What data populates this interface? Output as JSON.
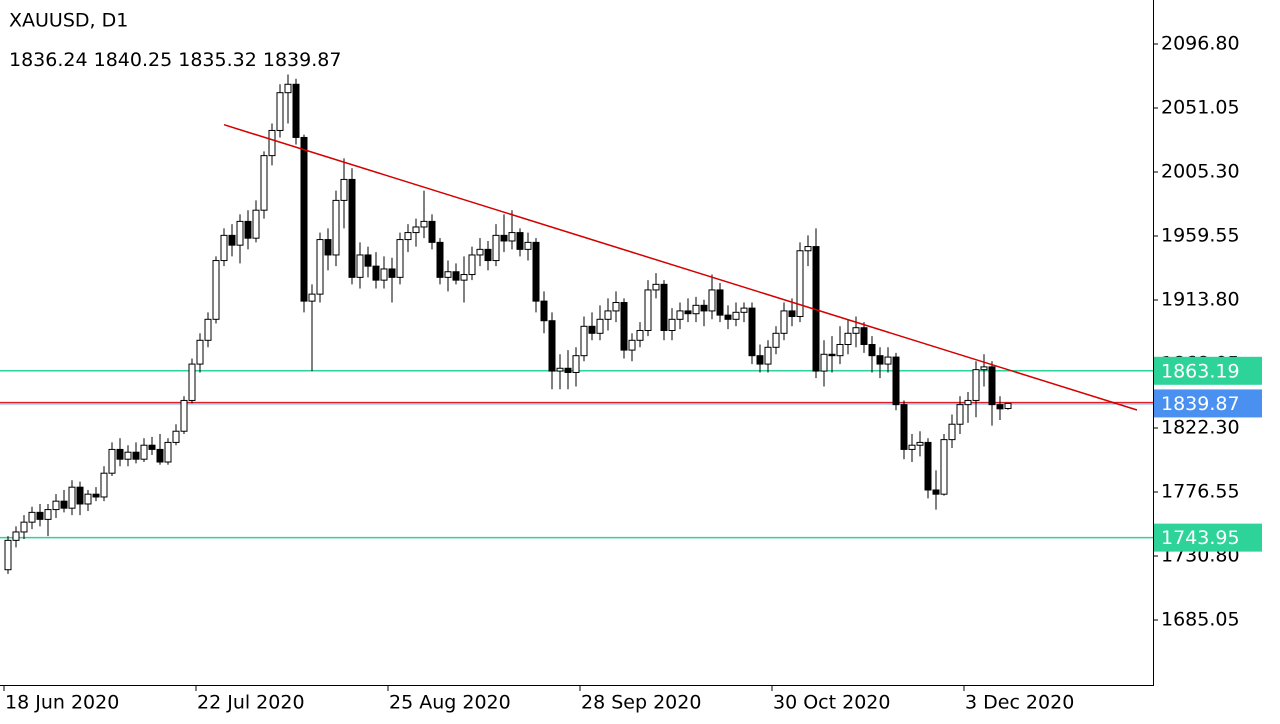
{
  "chart_data": {
    "type": "candlestick",
    "title": "XAUUSD, D1",
    "categories": [
      "18 Jun 2020",
      null,
      null,
      null,
      null,
      null,
      null,
      null,
      null,
      null,
      null,
      null,
      null,
      null,
      null,
      null,
      null,
      null,
      null,
      null,
      null,
      null,
      null,
      null,
      "22 Jul 2020",
      null,
      null,
      null,
      null,
      null,
      null,
      null,
      null,
      null,
      null,
      null,
      null,
      null,
      null,
      null,
      null,
      null,
      null,
      null,
      null,
      null,
      null,
      null,
      "25 Aug 2020",
      null,
      null,
      null,
      null,
      null,
      null,
      null,
      null,
      null,
      null,
      null,
      null,
      null,
      null,
      null,
      null,
      null,
      null,
      null,
      null,
      null,
      null,
      null,
      "28 Sep 2020",
      null,
      null,
      null,
      null,
      null,
      null,
      null,
      null,
      null,
      null,
      null,
      null,
      null,
      null,
      null,
      null,
      null,
      null,
      null,
      null,
      null,
      null,
      null,
      "30 Oct 2020",
      null,
      null,
      null,
      null,
      null,
      null,
      null,
      null,
      null,
      null,
      null,
      null,
      null,
      null,
      null,
      null,
      null,
      null,
      null,
      null,
      null,
      null,
      null,
      "3 Dec 2020",
      null,
      null,
      null,
      null,
      null
    ],
    "open": [
      1721,
      1742,
      1748,
      1755,
      1762,
      1757,
      1764,
      1770,
      1765,
      1780,
      1768,
      1775,
      1773,
      1790,
      1807,
      1800,
      1805,
      1800,
      1810,
      1807,
      1798,
      1812,
      1820,
      1842,
      1868,
      1885,
      1900,
      1942,
      1960,
      1953,
      1970,
      1958,
      1978,
      2017,
      2035,
      2062,
      2068,
      2030,
      1913,
      1918,
      1957,
      1946,
      1985,
      2000,
      1930,
      1946,
      1938,
      1928,
      1936,
      1930,
      1957,
      1962,
      1966,
      1970,
      1955,
      1930,
      1934,
      1928,
      1932,
      1946,
      1950,
      1942,
      1960,
      1956,
      1962,
      1950,
      1955,
      1913,
      1899,
      1863,
      1865,
      1862,
      1874,
      1895,
      1890,
      1900,
      1906,
      1912,
      1878,
      1885,
      1892,
      1921,
      1925,
      1892,
      1900,
      1906,
      1904,
      1910,
      1906,
      1921,
      1903,
      1900,
      1905,
      1908,
      1874,
      1868,
      1880,
      1890,
      1906,
      1902,
      1949,
      1952,
      1863,
      1875,
      1874,
      1882,
      1890,
      1894,
      1882,
      1874,
      1868,
      1873,
      1839,
      1807,
      1810,
      1812,
      1778,
      1775,
      1814,
      1825,
      1839,
      1842,
      1864,
      1866,
      1839,
      1836.24
    ],
    "high": [
      1745,
      1752,
      1760,
      1766,
      1768,
      1768,
      1775,
      1778,
      1785,
      1784,
      1778,
      1780,
      1795,
      1812,
      1815,
      1810,
      1812,
      1815,
      1816,
      1818,
      1815,
      1825,
      1845,
      1872,
      1890,
      1905,
      1945,
      1965,
      1968,
      1975,
      1978,
      1985,
      2020,
      2040,
      2068,
      2075,
      2072,
      2032,
      1925,
      1962,
      1965,
      1992,
      2015,
      2008,
      1955,
      1952,
      1948,
      1945,
      1944,
      1962,
      1968,
      1972,
      1992,
      1975,
      1958,
      1942,
      1940,
      1945,
      1952,
      1958,
      1956,
      1968,
      1975,
      1978,
      1965,
      1962,
      1958,
      1920,
      1905,
      1875,
      1878,
      1880,
      1902,
      1905,
      1910,
      1915,
      1920,
      1915,
      1890,
      1898,
      1928,
      1933,
      1928,
      1908,
      1912,
      1915,
      1916,
      1914,
      1932,
      1926,
      1910,
      1912,
      1912,
      1912,
      1882,
      1885,
      1895,
      1912,
      1915,
      1955,
      1960,
      1965,
      1885,
      1888,
      1895,
      1900,
      1902,
      1898,
      1888,
      1880,
      1880,
      1876,
      1842,
      1818,
      1820,
      1815,
      1792,
      1818,
      1832,
      1845,
      1848,
      1870,
      1875,
      1870,
      1845,
      1840.25
    ],
    "low": [
      1718,
      1737,
      1743,
      1750,
      1752,
      1745,
      1758,
      1762,
      1760,
      1760,
      1763,
      1770,
      1770,
      1788,
      1795,
      1795,
      1797,
      1798,
      1803,
      1796,
      1796,
      1810,
      1818,
      1840,
      1862,
      1880,
      1897,
      1938,
      1945,
      1940,
      1950,
      1955,
      1972,
      2010,
      2030,
      2040,
      2025,
      1905,
      1863,
      1912,
      1935,
      1938,
      1965,
      1925,
      1922,
      1930,
      1922,
      1922,
      1912,
      1925,
      1948,
      1952,
      1958,
      1950,
      1925,
      1920,
      1925,
      1912,
      1928,
      1938,
      1935,
      1938,
      1948,
      1950,
      1945,
      1942,
      1905,
      1890,
      1850,
      1850,
      1850,
      1852,
      1870,
      1885,
      1885,
      1892,
      1898,
      1872,
      1870,
      1880,
      1888,
      1915,
      1885,
      1885,
      1893,
      1898,
      1898,
      1895,
      1900,
      1898,
      1893,
      1895,
      1898,
      1868,
      1862,
      1862,
      1875,
      1885,
      1895,
      1898,
      1938,
      1858,
      1852,
      1862,
      1868,
      1875,
      1880,
      1876,
      1862,
      1858,
      1862,
      1835,
      1800,
      1798,
      1802,
      1772,
      1764,
      1774,
      1808,
      1818,
      1826,
      1830,
      1852,
      1824,
      1828,
      1835.32
    ],
    "close": [
      1742,
      1748,
      1755,
      1762,
      1757,
      1764,
      1770,
      1765,
      1780,
      1768,
      1775,
      1773,
      1790,
      1807,
      1800,
      1805,
      1800,
      1810,
      1807,
      1798,
      1812,
      1820,
      1842,
      1868,
      1885,
      1900,
      1942,
      1960,
      1953,
      1970,
      1958,
      1978,
      2017,
      2035,
      2062,
      2068,
      2030,
      1913,
      1918,
      1957,
      1946,
      1985,
      2000,
      1930,
      1946,
      1938,
      1928,
      1936,
      1930,
      1957,
      1962,
      1966,
      1970,
      1955,
      1930,
      1934,
      1928,
      1932,
      1946,
      1950,
      1942,
      1960,
      1956,
      1962,
      1950,
      1955,
      1913,
      1899,
      1863,
      1865,
      1862,
      1874,
      1895,
      1890,
      1900,
      1906,
      1912,
      1878,
      1885,
      1892,
      1921,
      1925,
      1892,
      1900,
      1906,
      1904,
      1910,
      1906,
      1921,
      1903,
      1900,
      1905,
      1908,
      1874,
      1868,
      1880,
      1890,
      1906,
      1902,
      1949,
      1952,
      1863,
      1875,
      1874,
      1882,
      1890,
      1894,
      1882,
      1874,
      1868,
      1873,
      1839,
      1807,
      1810,
      1812,
      1778,
      1775,
      1814,
      1825,
      1839,
      1842,
      1864,
      1866,
      1839,
      1836,
      1839.87
    ],
    "up_color": "#ffffff",
    "down_color": "#000000",
    "ylim": [
      1638.6,
      2128.25
    ],
    "yticks": [
      {
        "value": 2096.8,
        "label": "2096.80"
      },
      2051.05,
      {
        "value": 2005.3,
        "label": "2005.30"
      },
      1959.55,
      {
        "value": 1913.8,
        "label": "1913.80"
      },
      1868.05,
      {
        "value": 1822.3,
        "label": "1822.30"
      },
      1776.55,
      {
        "value": 1730.8,
        "label": "1730.80"
      },
      1685.05
    ],
    "levels": [
      {
        "value": 1863.19,
        "color": "#2ed39a"
      },
      {
        "value": 1743.95,
        "color": "#2ed39a"
      }
    ],
    "current_price_color": "#4a90f0",
    "trendline": {
      "x": [
        27,
        125
      ],
      "values": [
        2039.1,
        1864.0
      ],
      "color": "#d40000"
    }
  }
}
